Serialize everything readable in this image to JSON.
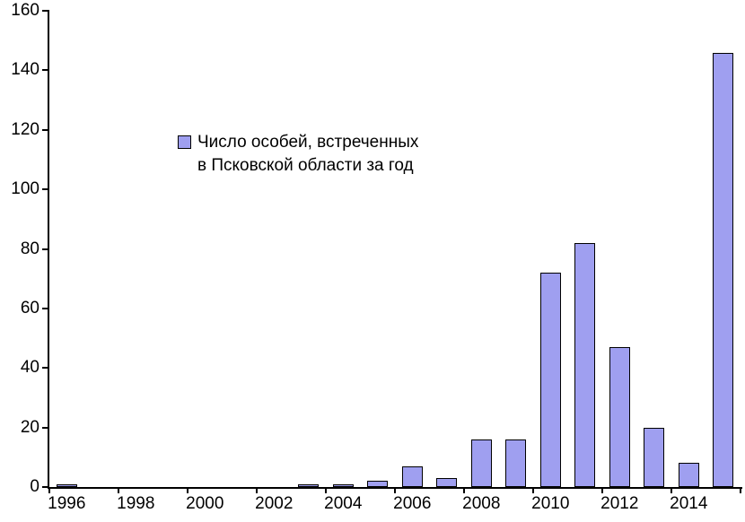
{
  "chart_data": {
    "type": "bar",
    "title": "",
    "legend_label": "Число особей, встреченных в Псковской области за год",
    "legend_lines": [
      "Число особей, встреченных",
      "в Псковской области за год"
    ],
    "categories": [
      "1996",
      "1997",
      "1998",
      "1999",
      "2000",
      "2001",
      "2002",
      "2003",
      "2004",
      "2005",
      "2006",
      "2007",
      "2008",
      "2009",
      "2010",
      "2011",
      "2012",
      "2013",
      "2014",
      "2015"
    ],
    "values": [
      1,
      0,
      0,
      0,
      0,
      0,
      0,
      1,
      1,
      2,
      7,
      3,
      16,
      16,
      72,
      82,
      47,
      20,
      8,
      146
    ],
    "xlabel": "",
    "ylabel": "",
    "ylim": [
      0,
      160
    ],
    "ytick_interval": 20,
    "ytick_labels": [
      "0",
      "20",
      "40",
      "60",
      "80",
      "100",
      "120",
      "140",
      "160"
    ],
    "xtick_labels": [
      "1996",
      "1998",
      "2000",
      "2002",
      "2004",
      "2006",
      "2008",
      "2010",
      "2012",
      "2014"
    ],
    "xtick_label_every": 2,
    "bar_fill": "#9F9FF0",
    "bar_border": "#000000",
    "axis_color": "#000000",
    "background": "#FFFFFF",
    "grid": false,
    "legend_position": "inside-upper-left"
  }
}
